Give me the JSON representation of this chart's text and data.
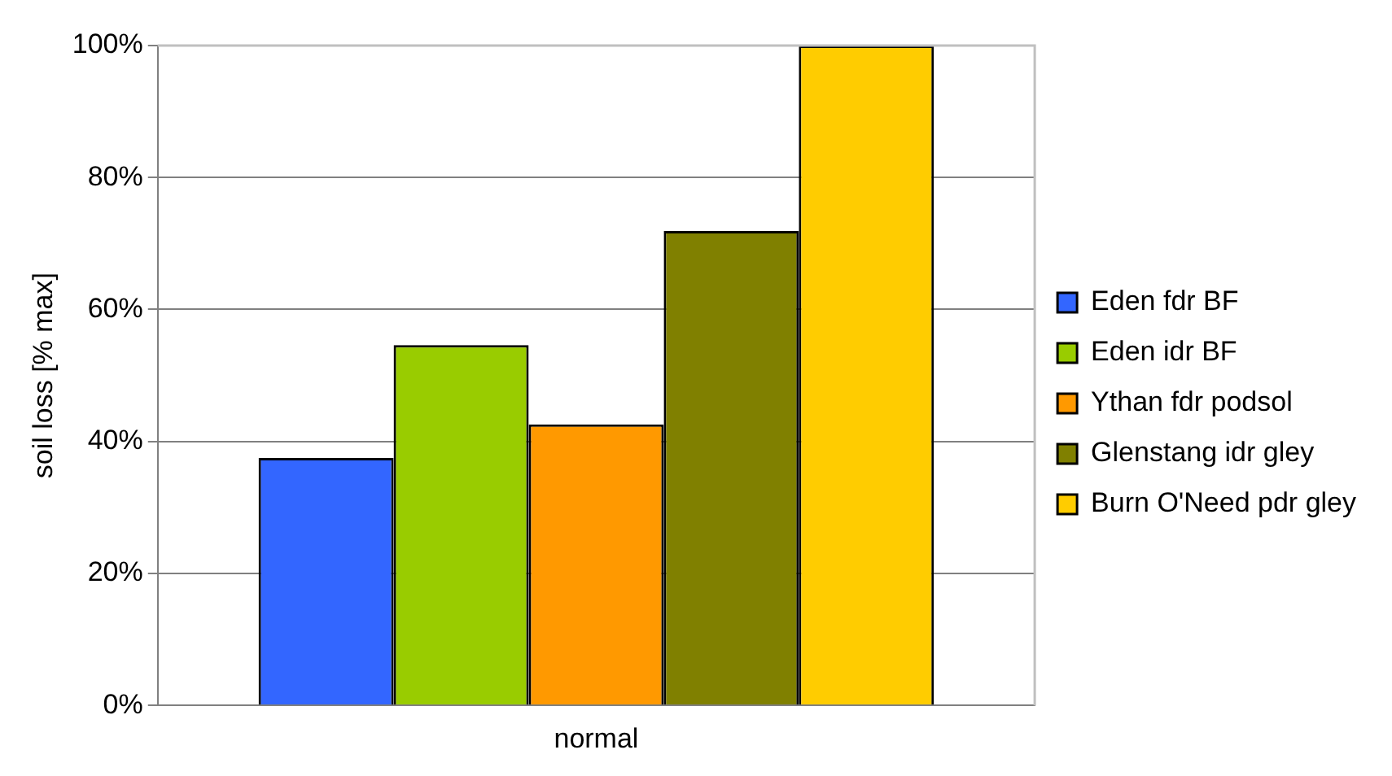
{
  "chart_data": {
    "type": "bar",
    "categories": [
      "normal"
    ],
    "ylabel": "soil loss [% max]",
    "series": [
      {
        "name": "Eden fdr BF",
        "color": "#3366ff",
        "values": [
          37.5
        ]
      },
      {
        "name": "Eden idr BF",
        "color": "#99cc00",
        "values": [
          54.6
        ]
      },
      {
        "name": "Ythan fdr podsol",
        "color": "#ff9900",
        "values": [
          42.6
        ]
      },
      {
        "name": "Glenstang idr gley",
        "color": "#808000",
        "values": [
          71.9
        ]
      },
      {
        "name": "Burn O'Need pdr gley",
        "color": "#ffcc00",
        "values": [
          100
        ]
      }
    ],
    "ylim": [
      0,
      100
    ],
    "yticks": [
      {
        "value": 0,
        "label": "0%"
      },
      {
        "value": 20,
        "label": "20%"
      },
      {
        "value": 40,
        "label": "40%"
      },
      {
        "value": 60,
        "label": "60%"
      },
      {
        "value": 80,
        "label": "80%"
      },
      {
        "value": 100,
        "label": "100%"
      }
    ],
    "grid": "y",
    "legend": "right"
  }
}
